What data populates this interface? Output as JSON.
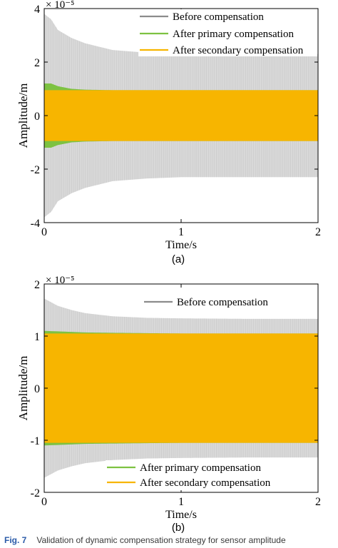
{
  "chart_data": [
    {
      "type": "line",
      "panel_label": "(a)",
      "xlabel": "Time/s",
      "ylabel": "Amplitude/m",
      "exponent": "× 10⁻⁵",
      "xlim": [
        0,
        2
      ],
      "ylim": [
        -4,
        4
      ],
      "xticks": [
        "0",
        "1",
        "2"
      ],
      "yticks": [
        "4",
        "2",
        "0",
        "-2",
        "-4"
      ],
      "legend_position": "top-right",
      "series": [
        {
          "name": "Before compensation",
          "color": "#8c8c8c",
          "fill_color": "#d9d9d9",
          "x": [
            0,
            0.05,
            0.1,
            0.2,
            0.3,
            0.5,
            0.75,
            1.0,
            1.5,
            2.0
          ],
          "upper": [
            3.8,
            3.6,
            3.2,
            2.9,
            2.7,
            2.45,
            2.35,
            2.3,
            2.3,
            2.3
          ],
          "lower": [
            -3.8,
            -3.6,
            -3.2,
            -2.9,
            -2.7,
            -2.45,
            -2.35,
            -2.3,
            -2.3,
            -2.3
          ]
        },
        {
          "name": "After primary compensation",
          "color": "#7dc241",
          "x": [
            0,
            0.05,
            0.1,
            0.2,
            0.3,
            0.5,
            2.0
          ],
          "upper": [
            1.2,
            1.2,
            1.1,
            1.0,
            0.97,
            0.95,
            0.95
          ],
          "lower": [
            -1.2,
            -1.2,
            -1.1,
            -1.0,
            -0.97,
            -0.95,
            -0.95
          ]
        },
        {
          "name": "After secondary compensation",
          "color": "#f7b500",
          "x": [
            0,
            2.0
          ],
          "upper": [
            0.95,
            0.95
          ],
          "lower": [
            -0.95,
            -0.95
          ]
        }
      ]
    },
    {
      "type": "line",
      "panel_label": "(b)",
      "xlabel": "Time/s",
      "ylabel": "Amplitude/m",
      "exponent": "× 10⁻⁵",
      "xlim": [
        0,
        2
      ],
      "ylim": [
        -2,
        2
      ],
      "xticks": [
        "0",
        "1",
        "2"
      ],
      "yticks": [
        "2",
        "1",
        "0",
        "-1",
        "-2"
      ],
      "legend_position": "split: top-right and bottom-right",
      "series": [
        {
          "name": "Before compensation",
          "color": "#8c8c8c",
          "fill_color": "#d9d9d9",
          "x": [
            0,
            0.05,
            0.1,
            0.2,
            0.3,
            0.5,
            0.75,
            1.0,
            1.5,
            2.0
          ],
          "upper": [
            1.72,
            1.65,
            1.58,
            1.5,
            1.44,
            1.38,
            1.35,
            1.34,
            1.33,
            1.33
          ],
          "lower": [
            -1.72,
            -1.65,
            -1.58,
            -1.5,
            -1.44,
            -1.38,
            -1.35,
            -1.34,
            -1.33,
            -1.33
          ]
        },
        {
          "name": "After primary compensation",
          "color": "#7dc241",
          "x": [
            0,
            0.1,
            0.3,
            0.6,
            1.0,
            2.0
          ],
          "upper": [
            1.1,
            1.09,
            1.07,
            1.06,
            1.05,
            1.05
          ],
          "lower": [
            -1.1,
            -1.09,
            -1.07,
            -1.06,
            -1.05,
            -1.05
          ]
        },
        {
          "name": "After secondary compensation",
          "color": "#f7b500",
          "x": [
            0,
            2.0
          ],
          "upper": [
            1.05,
            1.05
          ],
          "lower": [
            -1.05,
            -1.05
          ]
        }
      ]
    }
  ],
  "caption": {
    "prefix": "Fig. 7",
    "text": "Validation of dynamic compensation strategy for sensor amplitude"
  }
}
